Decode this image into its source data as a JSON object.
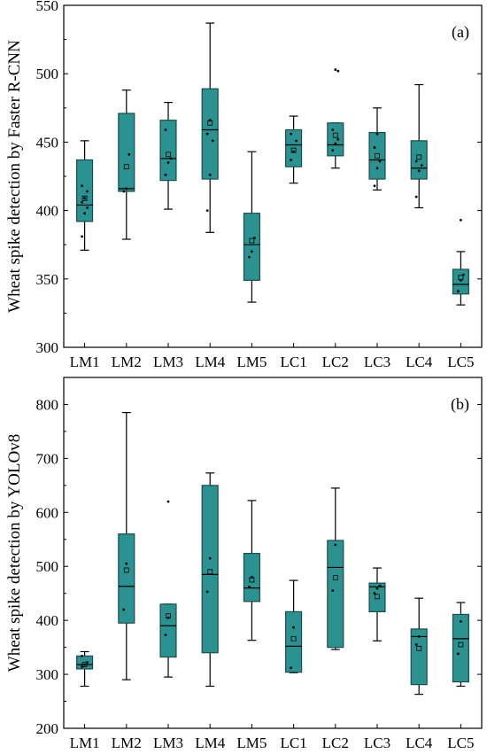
{
  "colors": {
    "box_fill": "#2a9290",
    "box_stroke": "#1b4d4c",
    "axis": "#000000"
  },
  "chart_data": [
    {
      "type": "box",
      "panel_label": "(a)",
      "ylabel": "Wheat spike detection  by Faster R-CNN",
      "xlabel": "",
      "ylim": [
        300,
        550
      ],
      "yticks": [
        300,
        350,
        400,
        450,
        500,
        550
      ],
      "categories": [
        "LM1",
        "LM2",
        "LM3",
        "LM4",
        "LM5",
        "LC1",
        "LC2",
        "LC3",
        "LC4",
        "LC5"
      ],
      "boxes": [
        {
          "min": 371,
          "q1": 392,
          "median": 404,
          "q3": 437,
          "max": 451,
          "mean": 409,
          "points": [
            381,
            398,
            402,
            406,
            409,
            414,
            418
          ]
        },
        {
          "min": 379,
          "q1": 414,
          "median": 416,
          "q3": 471,
          "max": 488,
          "mean": 432,
          "points": [
            414,
            416,
            441
          ]
        },
        {
          "min": 401,
          "q1": 422,
          "median": 438,
          "q3": 466,
          "max": 479,
          "mean": 441,
          "points": [
            426,
            435,
            438,
            459
          ]
        },
        {
          "min": 384,
          "q1": 423,
          "median": 459,
          "q3": 489,
          "max": 537,
          "mean": 464,
          "points": [
            400,
            426,
            451,
            456,
            466
          ]
        },
        {
          "min": 333,
          "q1": 349,
          "median": 375,
          "q3": 398,
          "max": 443,
          "mean": 378,
          "points": [
            366,
            370,
            380
          ]
        },
        {
          "min": 420,
          "q1": 432,
          "median": 448,
          "q3": 459,
          "max": 469,
          "mean": 444,
          "points": [
            437,
            443,
            451,
            456
          ]
        },
        {
          "min": 431,
          "q1": 440,
          "median": 448,
          "q3": 464,
          "max": 464,
          "mean": 455,
          "points": [
            444,
            449,
            452,
            459
          ],
          "outliers": [
            503,
            502
          ]
        },
        {
          "min": 415,
          "q1": 423,
          "median": 437,
          "q3": 457,
          "max": 475,
          "mean": 440,
          "points": [
            418,
            431,
            436,
            446,
            456
          ]
        },
        {
          "min": 402,
          "q1": 423,
          "median": 431,
          "q3": 451,
          "max": 492,
          "mean": 439,
          "points": [
            410,
            429,
            433,
            436
          ]
        },
        {
          "min": 331,
          "q1": 339,
          "median": 346,
          "q3": 357,
          "max": 370,
          "mean": 351,
          "points": [
            341,
            349,
            353
          ],
          "outliers": [
            393
          ]
        }
      ]
    },
    {
      "type": "box",
      "panel_label": "(b)",
      "ylabel": "Wheat spike detection  by YOLOv8",
      "xlabel": "",
      "ylim": [
        200,
        850
      ],
      "yticks": [
        200,
        300,
        400,
        500,
        600,
        700,
        800
      ],
      "categories": [
        "LM1",
        "LM2",
        "LM3",
        "LM4",
        "LM5",
        "LC1",
        "LC2",
        "LC3",
        "LC4",
        "LC5"
      ],
      "boxes": [
        {
          "min": 278,
          "q1": 310,
          "median": 318,
          "q3": 334,
          "max": 342,
          "mean": 318,
          "points": [
            314,
            318,
            322,
            334
          ]
        },
        {
          "min": 290,
          "q1": 395,
          "median": 463,
          "q3": 560,
          "max": 785,
          "mean": 493,
          "points": [
            420,
            505
          ]
        },
        {
          "min": 295,
          "q1": 332,
          "median": 390,
          "q3": 430,
          "max": 430,
          "mean": 408,
          "points": [
            373,
            405
          ],
          "outliers": [
            620
          ]
        },
        {
          "min": 278,
          "q1": 340,
          "median": 485,
          "q3": 650,
          "max": 673,
          "mean": 490,
          "points": [
            453,
            515
          ]
        },
        {
          "min": 363,
          "q1": 435,
          "median": 460,
          "q3": 524,
          "max": 622,
          "mean": 475,
          "points": [
            462,
            480
          ]
        },
        {
          "min": 303,
          "q1": 304,
          "median": 352,
          "q3": 416,
          "max": 474,
          "mean": 366,
          "points": [
            312,
            387
          ]
        },
        {
          "min": 346,
          "q1": 350,
          "median": 498,
          "q3": 548,
          "max": 645,
          "mean": 479,
          "points": [
            455,
            540
          ]
        },
        {
          "min": 362,
          "q1": 416,
          "median": 462,
          "q3": 469,
          "max": 497,
          "mean": 444,
          "points": [
            450,
            459,
            464
          ]
        },
        {
          "min": 263,
          "q1": 281,
          "median": 370,
          "q3": 384,
          "max": 441,
          "mean": 348,
          "points": [
            355,
            370
          ]
        },
        {
          "min": 278,
          "q1": 286,
          "median": 366,
          "q3": 411,
          "max": 433,
          "mean": 355,
          "points": [
            338,
            398
          ]
        }
      ]
    }
  ]
}
